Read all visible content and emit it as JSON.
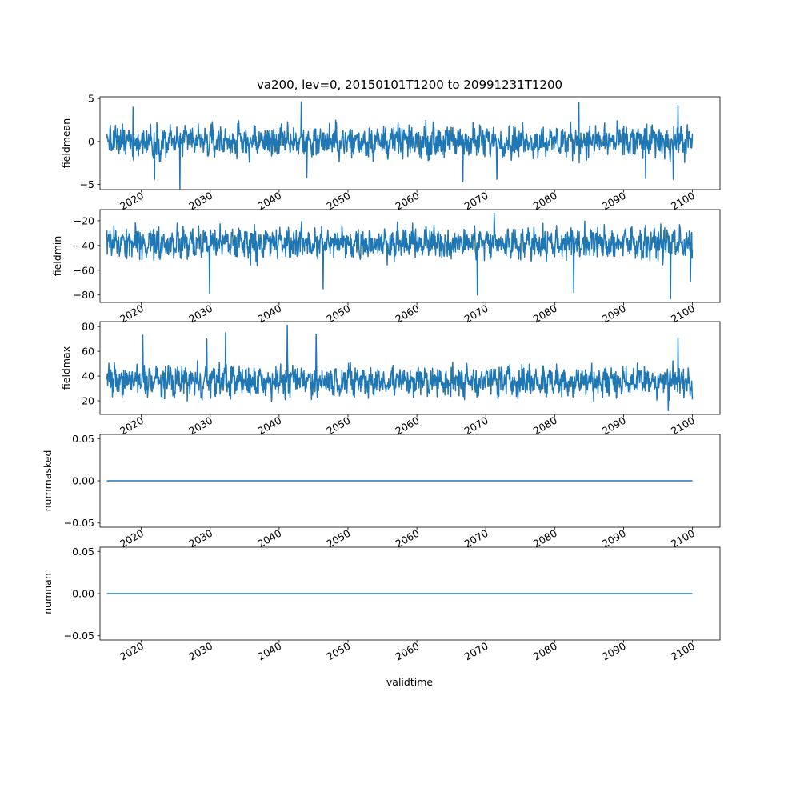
{
  "title": "va200, lev=0, 20150101T1200 to 20991231T1200",
  "xlabel": "validtime",
  "line_color": "#1f77b4",
  "chart_data": [
    {
      "type": "line",
      "ylabel": "fieldmean",
      "x_range": [
        "2015-01-01",
        "2099-12-31"
      ],
      "xlim": [
        2014.0,
        2104.0
      ],
      "ylim": [
        -5.6,
        5.2
      ],
      "yticks": [
        -5,
        0,
        5
      ],
      "ytick_labels": [
        "−5",
        "0",
        "5"
      ],
      "xticks": [
        2020,
        2030,
        2040,
        2050,
        2060,
        2070,
        2080,
        2090,
        2100
      ],
      "xtick_labels": [
        "2020",
        "2030",
        "2040",
        "2050",
        "2060",
        "2070",
        "2080",
        "2090",
        "2100"
      ],
      "band": {
        "low": -2.0,
        "high": 2.0
      },
      "spikes": [
        [
          2018.8,
          4.0
        ],
        [
          2021.9,
          -4.4
        ],
        [
          2025.6,
          -5.5
        ],
        [
          2043.2,
          4.6
        ],
        [
          2044.0,
          -4.2
        ],
        [
          2066.7,
          -4.7
        ],
        [
          2071.6,
          -4.4
        ],
        [
          2083.5,
          4.5
        ],
        [
          2093.2,
          -4.3
        ],
        [
          2097.2,
          -4.4
        ],
        [
          2097.9,
          4.2
        ]
      ],
      "description": "daily series, fluctuating around 0 with most values between -3 and 3"
    },
    {
      "type": "line",
      "ylabel": "fieldmin",
      "x_range": [
        "2015-01-01",
        "2099-12-31"
      ],
      "xlim": [
        2014.0,
        2104.0
      ],
      "ylim": [
        -86,
        -11
      ],
      "yticks": [
        -80,
        -60,
        -40,
        -20
      ],
      "ytick_labels": [
        "−80",
        "−60",
        "−40",
        "−20"
      ],
      "xticks": [
        2020,
        2030,
        2040,
        2050,
        2060,
        2070,
        2080,
        2090,
        2100
      ],
      "xtick_labels": [
        "2020",
        "2030",
        "2040",
        "2050",
        "2060",
        "2070",
        "2080",
        "2090",
        "2100"
      ],
      "band": {
        "low": -52,
        "high": -24
      },
      "spikes": [
        [
          2029.9,
          -79
        ],
        [
          2046.4,
          -75
        ],
        [
          2068.8,
          -80
        ],
        [
          2082.8,
          -78
        ],
        [
          2096.8,
          -83
        ],
        [
          2099.7,
          -69
        ],
        [
          2071.2,
          -14
        ]
      ],
      "description": "daily series, mostly between -60 and -18"
    },
    {
      "type": "line",
      "ylabel": "fieldmax",
      "x_range": [
        "2015-01-01",
        "2099-12-31"
      ],
      "xlim": [
        2014.0,
        2104.0
      ],
      "ylim": [
        9,
        84
      ],
      "yticks": [
        20,
        40,
        60,
        80
      ],
      "ytick_labels": [
        "20",
        "40",
        "60",
        "80"
      ],
      "xticks": [
        2020,
        2030,
        2040,
        2050,
        2060,
        2070,
        2080,
        2090,
        2100
      ],
      "xtick_labels": [
        "2020",
        "2030",
        "2040",
        "2050",
        "2060",
        "2070",
        "2080",
        "2090",
        "2100"
      ],
      "band": {
        "low": 22,
        "high": 50
      },
      "spikes": [
        [
          2041.2,
          81
        ],
        [
          2032.2,
          75
        ],
        [
          2020.2,
          73
        ],
        [
          2045.4,
          74
        ],
        [
          2097.9,
          71
        ],
        [
          2029.5,
          70
        ],
        [
          2096.5,
          12
        ]
      ],
      "description": "daily series, mostly between 15 and 65"
    },
    {
      "type": "line",
      "ylabel": "nummasked",
      "x_range": [
        "2015-01-01",
        "2099-12-31"
      ],
      "xlim": [
        2014.0,
        2104.0
      ],
      "ylim": [
        -0.055,
        0.055
      ],
      "yticks": [
        -0.05,
        0.0,
        0.05
      ],
      "ytick_labels": [
        "−0.05",
        "0.00",
        "0.05"
      ],
      "xticks": [
        2020,
        2030,
        2040,
        2050,
        2060,
        2070,
        2080,
        2090,
        2100
      ],
      "xtick_labels": [
        "2020",
        "2030",
        "2040",
        "2050",
        "2060",
        "2070",
        "2080",
        "2090",
        "2100"
      ],
      "constant": 0.0
    },
    {
      "type": "line",
      "ylabel": "numnan",
      "x_range": [
        "2015-01-01",
        "2099-12-31"
      ],
      "xlim": [
        2014.0,
        2104.0
      ],
      "ylim": [
        -0.055,
        0.055
      ],
      "yticks": [
        -0.05,
        0.0,
        0.05
      ],
      "ytick_labels": [
        "−0.05",
        "0.00",
        "0.05"
      ],
      "xticks": [
        2020,
        2030,
        2040,
        2050,
        2060,
        2070,
        2080,
        2090,
        2100
      ],
      "xtick_labels": [
        "2020",
        "2030",
        "2040",
        "2050",
        "2060",
        "2070",
        "2080",
        "2090",
        "2100"
      ],
      "constant": 0.0
    }
  ]
}
